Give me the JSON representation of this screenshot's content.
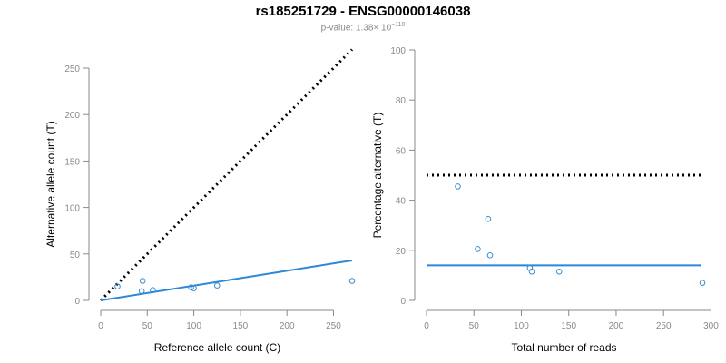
{
  "header": {
    "title": "rs185251729 - ENSG00000146038",
    "pvalue_prefix": "p-value: 1.38× 10",
    "pvalue_exponent": "−110"
  },
  "colors": {
    "points": "#3a8fd0",
    "fit_line": "#2b88d8",
    "reference_line": "#000000",
    "axis": "#8a8a8a"
  },
  "chart_data": [
    {
      "type": "scatter",
      "xlabel": "Reference allele count (C)",
      "ylabel": "Alternative allele count (T)",
      "xlim": [
        0,
        270
      ],
      "ylim": [
        0,
        250
      ],
      "xticks": [
        0,
        50,
        100,
        150,
        200,
        250
      ],
      "yticks": [
        0,
        50,
        100,
        150,
        200,
        250
      ],
      "points": [
        {
          "x": 18,
          "y": 15
        },
        {
          "x": 44,
          "y": 10
        },
        {
          "x": 45,
          "y": 21
        },
        {
          "x": 56,
          "y": 11
        },
        {
          "x": 97,
          "y": 14
        },
        {
          "x": 100,
          "y": 13
        },
        {
          "x": 125,
          "y": 16
        },
        {
          "x": 270,
          "y": 21
        }
      ],
      "lines": [
        {
          "kind": "reference",
          "style": "dotted",
          "x": [
            0,
            270
          ],
          "y": [
            0,
            270
          ]
        },
        {
          "kind": "fit",
          "style": "solid",
          "x": [
            0,
            270
          ],
          "y": [
            0,
            43
          ]
        }
      ],
      "grid": false
    },
    {
      "type": "scatter",
      "xlabel": "Total number of reads",
      "ylabel": "Percentage alternative (T)",
      "xlim": [
        0,
        290
      ],
      "ylim": [
        0,
        100
      ],
      "xticks": [
        0,
        50,
        100,
        150,
        200,
        250,
        300
      ],
      "yticks": [
        0,
        20,
        40,
        60,
        80,
        100
      ],
      "points": [
        {
          "x": 33,
          "y": 45.5
        },
        {
          "x": 54,
          "y": 20.5
        },
        {
          "x": 65,
          "y": 32.5
        },
        {
          "x": 67,
          "y": 18
        },
        {
          "x": 109,
          "y": 13
        },
        {
          "x": 111,
          "y": 11.5
        },
        {
          "x": 140,
          "y": 11.5
        },
        {
          "x": 291,
          "y": 7
        }
      ],
      "lines": [
        {
          "kind": "reference",
          "style": "dotted",
          "x": [
            0,
            290
          ],
          "y": [
            50,
            50
          ]
        },
        {
          "kind": "fit",
          "style": "solid",
          "x": [
            0,
            290
          ],
          "y": [
            14,
            14
          ]
        }
      ],
      "grid": false
    }
  ]
}
